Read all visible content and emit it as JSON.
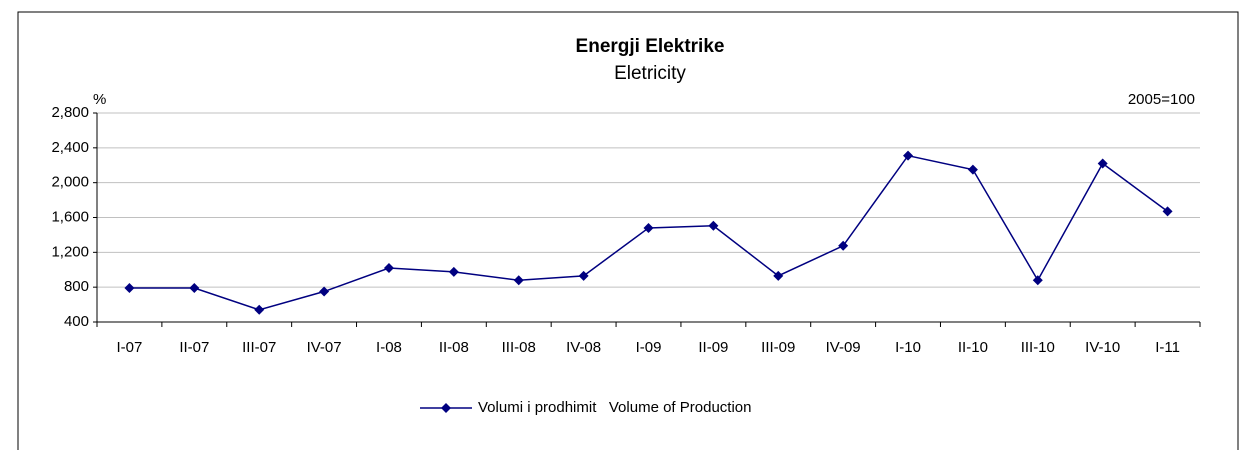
{
  "chart_data": {
    "type": "line",
    "title": "Energji Elektrike",
    "subtitle": "Eletricity",
    "y_label": "%",
    "annotation": "2005=100",
    "categories": [
      "I-07",
      "II-07",
      "III-07",
      "IV-07",
      "I-08",
      "II-08",
      "III-08",
      "IV-08",
      "I-09",
      "II-09",
      "III-09",
      "IV-09",
      "I-10",
      "II-10",
      "III-10",
      "IV-10",
      "I-11"
    ],
    "series": [
      {
        "name": "Volumi i prodhimit   Volume of Production",
        "color": "#000080",
        "values": [
          790,
          790,
          540,
          750,
          1020,
          975,
          880,
          930,
          1480,
          1505,
          930,
          1275,
          2310,
          2150,
          880,
          2220,
          1670
        ]
      }
    ],
    "ylim": [
      400,
      2800
    ],
    "yticks": [
      400,
      800,
      {
        "value": 1200,
        "label": "1,200"
      },
      {
        "value": 1600,
        "label": "1,600"
      },
      {
        "value": 2000,
        "label": "2,000"
      },
      {
        "value": 2400,
        "label": "2,400"
      },
      {
        "value": 2800,
        "label": "2,800"
      }
    ],
    "grid": true,
    "legend": "bottom"
  }
}
